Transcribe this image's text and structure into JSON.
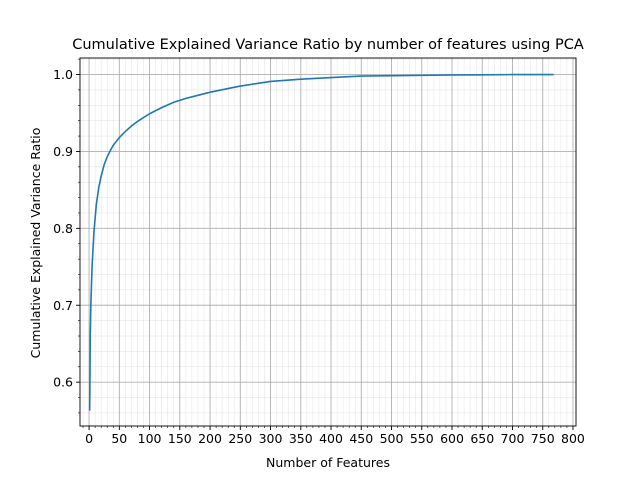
{
  "chart_data": {
    "type": "line",
    "title": "Cumulative Explained Variance Ratio by number of features using PCA",
    "xlabel": "Number of Features",
    "ylabel": "Cumulative Explained Variance Ratio",
    "xlim": [
      -15,
      805
    ],
    "ylim": [
      0.543,
      1.0215
    ],
    "x_major_ticks": [
      0,
      50,
      100,
      150,
      200,
      250,
      300,
      350,
      400,
      450,
      500,
      550,
      600,
      650,
      700,
      750,
      800
    ],
    "x_tick_labels": [
      "0",
      "50",
      "100",
      "150",
      "200",
      "250",
      "300",
      "350",
      "400",
      "450",
      "500",
      "550",
      "600",
      "650",
      "700",
      "750",
      "800"
    ],
    "x_minor_step": 10,
    "y_major_ticks": [
      0.6,
      0.7,
      0.8,
      0.9,
      1.0
    ],
    "y_tick_labels": [
      "0.6",
      "0.7",
      "0.8",
      "0.9",
      "1.0"
    ],
    "y_minor_step": 0.02,
    "grid": true,
    "minor_grid": true,
    "line_color": "#1f77b4",
    "series": [
      {
        "x": [
          1,
          2,
          3,
          5,
          8,
          12,
          16,
          20,
          25,
          30,
          35,
          40,
          45,
          50,
          60,
          70,
          80,
          90,
          100,
          120,
          140,
          160,
          180,
          200,
          250,
          300,
          350,
          400,
          450,
          500,
          550,
          600,
          650,
          700,
          768
        ],
        "y": [
          0.563,
          0.661,
          0.703,
          0.751,
          0.795,
          0.831,
          0.853,
          0.868,
          0.883,
          0.893,
          0.901,
          0.908,
          0.913,
          0.918,
          0.926,
          0.933,
          0.939,
          0.944,
          0.949,
          0.957,
          0.964,
          0.969,
          0.973,
          0.977,
          0.985,
          0.991,
          0.994,
          0.996,
          0.998,
          0.9985,
          0.999,
          0.9995,
          0.9997,
          0.9999,
          1.0
        ]
      }
    ]
  }
}
